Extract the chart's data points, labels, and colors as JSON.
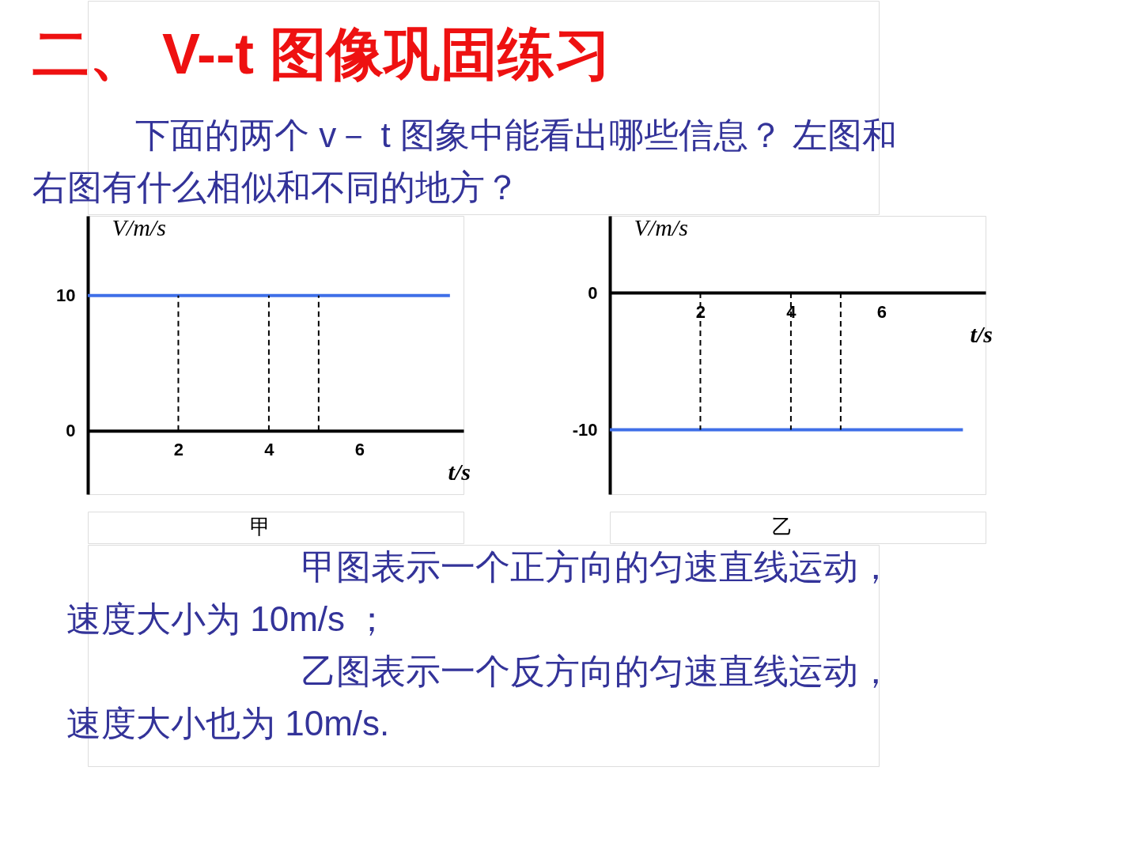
{
  "chart_data": [
    {
      "type": "line",
      "title": "二、 V--t 图像巩固练习",
      "subtitle": "下面的两个 v－ t 图象中能看出哪些信息？ 左图和右图有什么相似和不同的地方？",
      "ylabel": "V/m/s",
      "xlabel": "t/s",
      "xlim": [
        0,
        8.3
      ],
      "ylim": [
        -4.7,
        15.9
      ],
      "xticks": [
        2,
        4,
        6
      ],
      "yticks": [
        0,
        10
      ],
      "grid": false,
      "series": [
        {
          "color": "#3f6fe8",
          "x": [
            0,
            8
          ],
          "values": [
            10,
            10
          ]
        },
        {
          "color": "#000000",
          "line_style": "dashed",
          "x": [
            2,
            2
          ],
          "values": [
            0,
            10
          ]
        },
        {
          "color": "#000000",
          "line_style": "dashed",
          "x": [
            4,
            4
          ],
          "values": [
            0,
            10
          ]
        },
        {
          "color": "#000000",
          "line_style": "dashed",
          "x": [
            5.1,
            5.1
          ],
          "values": [
            0,
            10
          ]
        }
      ],
      "annotations": [
        "甲",
        "甲图表示一个正方向的匀速直线运动，速度大小为 10m/s ；"
      ]
    },
    {
      "type": "line",
      "ylabel": "V/m/s",
      "xlabel": "t/s",
      "xlim": [
        0,
        8.3
      ],
      "ylim": [
        -14.7,
        5.6
      ],
      "xticks": [
        2,
        4,
        6
      ],
      "yticks": [
        0,
        -10
      ],
      "grid": false,
      "series": [
        {
          "color": "#3f6fe8",
          "x": [
            0,
            7.8
          ],
          "values": [
            -10,
            -10
          ]
        },
        {
          "color": "#000000",
          "line_style": "dashed",
          "x": [
            2,
            2
          ],
          "values": [
            0,
            -10
          ]
        },
        {
          "color": "#000000",
          "line_style": "dashed",
          "x": [
            4,
            4
          ],
          "values": [
            0,
            -10
          ]
        },
        {
          "color": "#000000",
          "line_style": "dashed",
          "x": [
            5.1,
            5.1
          ],
          "values": [
            0,
            -10
          ]
        }
      ],
      "annotations": [
        "乙",
        "乙图表示一个反方向的匀速直线运动，速度大小也为 10m/s."
      ]
    }
  ]
}
